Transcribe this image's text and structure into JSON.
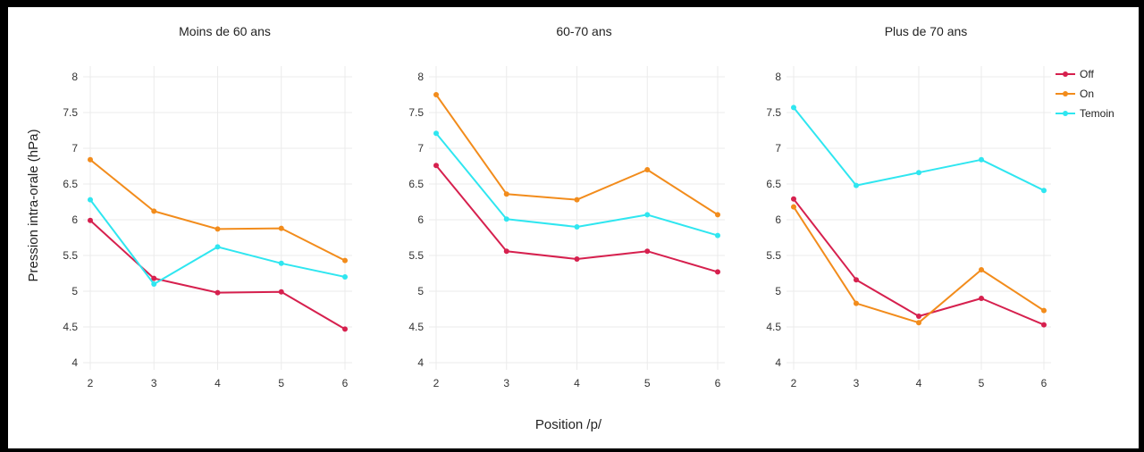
{
  "chart_data": {
    "type": "line",
    "xlabel": "Position /p/",
    "ylabel": "Pression intra-orale (hPa)",
    "xlim": [
      2,
      6
    ],
    "ylim": [
      4,
      8
    ],
    "x_ticks": [
      "2",
      "3",
      "4",
      "5",
      "6"
    ],
    "y_ticks": [
      "4",
      "4.5",
      "5",
      "5.5",
      "6",
      "6.5",
      "7",
      "7.5",
      "8"
    ],
    "grid": true,
    "legend_position": "right",
    "legend": [
      {
        "name": "Off",
        "color": "#d6204e"
      },
      {
        "name": "On",
        "color": "#f28c1c"
      },
      {
        "name": "Temoin",
        "color": "#2fe6f0"
      }
    ],
    "x": [
      2,
      3,
      4,
      5,
      6
    ],
    "panels": [
      {
        "title": "Moins de 60 ans",
        "series": [
          {
            "name": "Off",
            "values": [
              5.99,
              5.18,
              4.98,
              4.99,
              4.47
            ]
          },
          {
            "name": "On",
            "values": [
              6.84,
              6.12,
              5.87,
              5.88,
              5.43
            ]
          },
          {
            "name": "Temoin",
            "values": [
              6.28,
              5.1,
              5.62,
              5.39,
              5.2
            ]
          }
        ]
      },
      {
        "title": "60-70 ans",
        "series": [
          {
            "name": "Off",
            "values": [
              6.76,
              5.56,
              5.45,
              5.56,
              5.27
            ]
          },
          {
            "name": "On",
            "values": [
              7.75,
              6.36,
              6.28,
              6.7,
              6.07
            ]
          },
          {
            "name": "Temoin",
            "values": [
              7.21,
              6.01,
              5.9,
              6.07,
              5.78
            ]
          }
        ]
      },
      {
        "title": "Plus de 70 ans",
        "series": [
          {
            "name": "Off",
            "values": [
              6.29,
              5.16,
              4.65,
              4.9,
              4.53
            ]
          },
          {
            "name": "On",
            "values": [
              6.18,
              4.83,
              4.56,
              5.3,
              4.73
            ]
          },
          {
            "name": "Temoin",
            "values": [
              7.57,
              6.48,
              6.66,
              6.84,
              6.41
            ]
          }
        ]
      }
    ]
  }
}
